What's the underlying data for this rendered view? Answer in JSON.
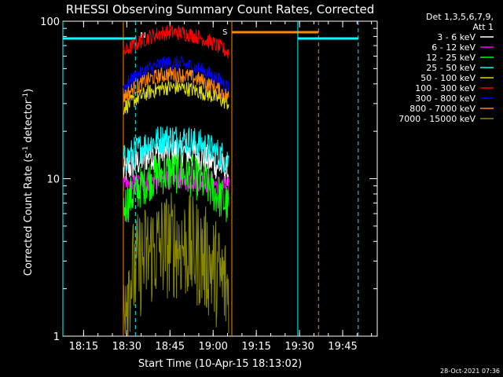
{
  "chart_data": {
    "type": "line",
    "title": "RHESSI Observing Summary Count Rates, Corrected",
    "xlabel": "Start Time (10-Apr-15 18:13:02)",
    "ylabel": "Corrected Count Rate (s",
    "ylabel_sup1": "-1",
    "ylabel_mid": " detector",
    "ylabel_sup2": "-1",
    "ylabel_end": ")",
    "x_range_min": [
      18.13,
      19.95
    ],
    "y_scale": "log",
    "ylim": [
      1,
      100
    ],
    "x_ticks": [
      {
        "label": "18:15",
        "v": 18.25
      },
      {
        "label": "18:30",
        "v": 18.5
      },
      {
        "label": "18:45",
        "v": 18.75
      },
      {
        "label": "19:00",
        "v": 19.0
      },
      {
        "label": "19:15",
        "v": 19.25
      },
      {
        "label": "19:30",
        "v": 19.5
      },
      {
        "label": "19:45",
        "v": 19.75
      }
    ],
    "y_ticks": [
      {
        "label": "1",
        "v": 1
      },
      {
        "label": "10",
        "v": 10
      },
      {
        "label": "100",
        "v": 100
      }
    ],
    "legend_header": [
      "Det 1,3,5,6,7,9,",
      "Att 1"
    ],
    "series": [
      {
        "name": "3 - 6 keV",
        "color": "#ffffff",
        "start": 11,
        "peak": 15,
        "end": 11,
        "noise": 0.1
      },
      {
        "name": "6 - 12 keV",
        "color": "#ff00ff",
        "start": 8.8,
        "peak": 10,
        "end": 8.8,
        "noise": 0.07
      },
      {
        "name": "12 - 25 keV",
        "color": "#00ff00",
        "start": 6.5,
        "peak": 11,
        "end": 6.5,
        "noise": 0.14
      },
      {
        "name": "25 - 50 keV",
        "color": "#00ffff",
        "start": 13,
        "peak": 18,
        "end": 13,
        "noise": 0.1
      },
      {
        "name": "50 - 100 keV",
        "color": "#dddd00",
        "start": 28,
        "peak": 38,
        "end": 30,
        "noise": 0.05
      },
      {
        "name": "100 - 300 keV",
        "color": "#ff0000",
        "start": 63,
        "peak": 85,
        "end": 63,
        "noise": 0.05
      },
      {
        "name": "300 - 800 keV",
        "color": "#0000ff",
        "start": 38,
        "peak": 54,
        "end": 38,
        "noise": 0.05
      },
      {
        "name": "800 - 7000 keV",
        "color": "#ff8800",
        "start": 33,
        "peak": 46,
        "end": 33,
        "noise": 0.05
      },
      {
        "name": "7000 - 15000 keV",
        "color": "#888800",
        "start": 1.9,
        "peak": 3.8,
        "end": 1.9,
        "noise": 0.35
      }
    ],
    "data_interval": [
      18.48,
      19.09
    ],
    "annotations": [
      {
        "label": "N",
        "at": 18.55,
        "color": "#00ffff",
        "kind": "night",
        "from": 18.13,
        "to": 18.55
      },
      {
        "label": "S",
        "at": 19.09,
        "color": "#ff8800",
        "kind": "saa",
        "from": 19.11,
        "to": 19.61
      },
      {
        "label": "",
        "at": 19.49,
        "color": "#00ffff",
        "kind": "night",
        "from": 19.49,
        "to": 19.84
      }
    ],
    "grid": false
  },
  "footer": {
    "timestamp": "28-Oct-2021 07:36"
  }
}
